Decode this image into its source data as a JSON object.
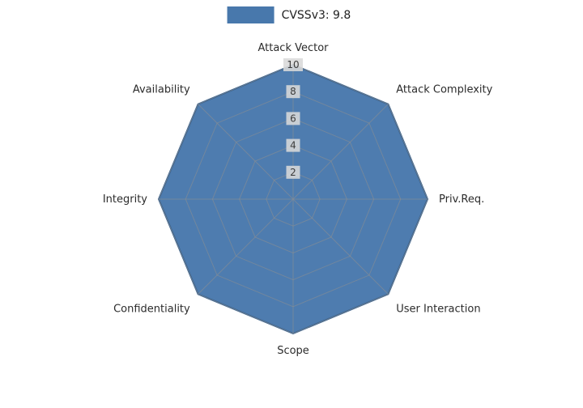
{
  "chart_data": {
    "type": "radar",
    "title": "",
    "legend_position": "top",
    "axes": [
      "Attack Vector",
      "Attack Complexity",
      "Priv.Req.",
      "User Interaction",
      "Scope",
      "Confidentiality",
      "Integrity",
      "Availability"
    ],
    "series": [
      {
        "name": "CVSSv3: 9.8",
        "values": [
          10,
          10,
          10,
          10,
          10,
          10,
          10,
          10
        ],
        "fill_color": "#4878ac",
        "edge_color": "#36618f"
      }
    ],
    "ticks": [
      2,
      4,
      6,
      8,
      10
    ],
    "r_max": 10,
    "grid": true,
    "grid_color": "#8f8f8f",
    "tick_label_bg": "#d9d9d9",
    "tick_label_color": "#3c3c3c",
    "axis_label_color": "#2b2b2b"
  }
}
